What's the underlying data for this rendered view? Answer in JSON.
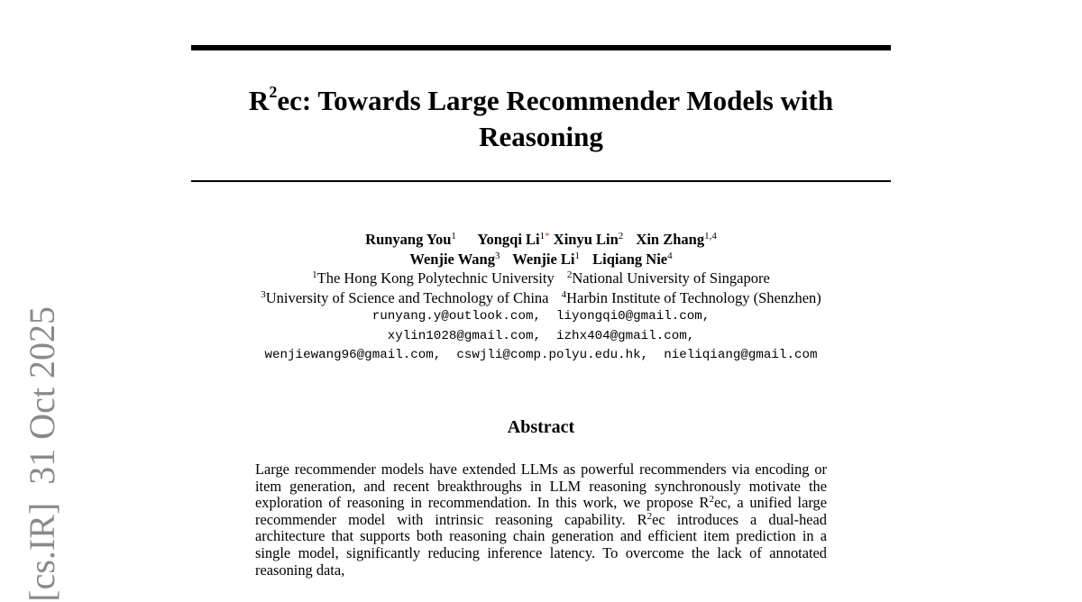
{
  "title": {
    "r": "R",
    "sup": "2",
    "line1_rest": "ec: Towards Large Recommender Models with",
    "line2": "Reasoning"
  },
  "authors": [
    {
      "name": "Runyang You",
      "aff": "1"
    },
    {
      "name": "Yongqi Li",
      "aff": "1",
      "mark": "*"
    },
    {
      "name": "Xinyu Lin",
      "aff": "2"
    },
    {
      "name": "Xin Zhang",
      "aff": "1,4"
    },
    {
      "name": "Wenjie Wang",
      "aff": "3"
    },
    {
      "name": "Wenjie Li",
      "aff": "1"
    },
    {
      "name": "Liqiang Nie",
      "aff": "4"
    }
  ],
  "affiliations": [
    {
      "num": "1",
      "name": "The Hong Kong Polytechnic University"
    },
    {
      "num": "2",
      "name": "National University of Singapore"
    },
    {
      "num": "3",
      "name": "University of Science and Technology of China"
    },
    {
      "num": "4",
      "name": "Harbin Institute of Technology (Shenzhen)"
    }
  ],
  "emails": [
    "runyang.y@outlook.com,  liyongqi0@gmail.com,",
    "xylin1028@gmail.com,  izhx404@gmail.com,",
    "wenjiewang96@gmail.com,  cswjli@comp.polyu.edu.hk,  nieliqiang@gmail.com"
  ],
  "abstract": {
    "heading": "Abstract",
    "p1": "Large recommender models have extended LLMs as powerful recommenders via encoding or item generation, and recent breakthroughs in LLM reasoning synchronously motivate the exploration of reasoning in recommendation. In this work, we propose R",
    "sup1": "2",
    "p2": "ec, a unified large recommender model with intrinsic reasoning capability. R",
    "sup2": "2",
    "p3": "ec introduces a dual-head architecture that supports both reasoning chain generation and efficient item prediction in a single model, significantly reducing inference latency. To overcome the lack of annotated reasoning data,"
  },
  "arxiv_stamp": "[cs.IR]  31 Oct 2025"
}
